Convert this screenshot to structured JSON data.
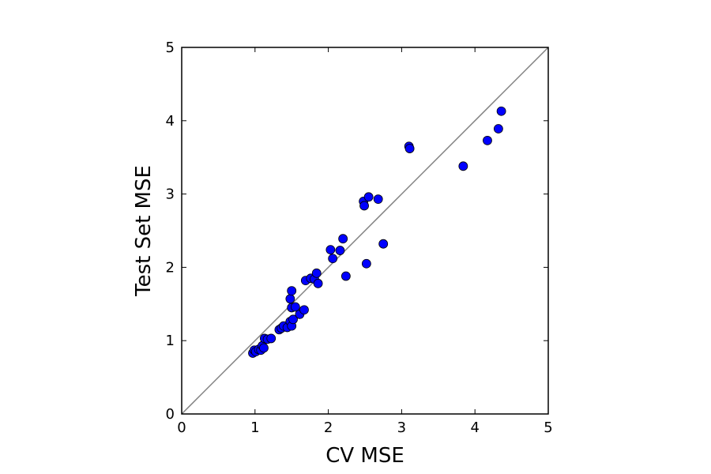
{
  "chart_data": {
    "type": "scatter",
    "title": "",
    "xlabel": "CV MSE",
    "ylabel": "Test Set MSE",
    "xlim": [
      0,
      5
    ],
    "ylim": [
      0,
      5
    ],
    "xticks": [
      "0",
      "1",
      "2",
      "3",
      "4",
      "5"
    ],
    "yticks": [
      "0",
      "1",
      "2",
      "3",
      "4",
      "5"
    ],
    "grid": false,
    "reference_line": {
      "from": [
        0,
        0
      ],
      "to": [
        5,
        5
      ],
      "color": "#808080"
    },
    "marker_color": "#0000ff",
    "marker_edge_color": "#000000",
    "points": [
      {
        "x": 0.97,
        "y": 0.83
      },
      {
        "x": 0.99,
        "y": 0.87
      },
      {
        "x": 1.01,
        "y": 0.85
      },
      {
        "x": 1.05,
        "y": 0.88
      },
      {
        "x": 1.08,
        "y": 0.87
      },
      {
        "x": 1.1,
        "y": 0.93
      },
      {
        "x": 1.12,
        "y": 0.9
      },
      {
        "x": 1.13,
        "y": 1.03
      },
      {
        "x": 1.17,
        "y": 1.02
      },
      {
        "x": 1.22,
        "y": 1.03
      },
      {
        "x": 1.33,
        "y": 1.15
      },
      {
        "x": 1.36,
        "y": 1.17
      },
      {
        "x": 1.39,
        "y": 1.2
      },
      {
        "x": 1.44,
        "y": 1.18
      },
      {
        "x": 1.48,
        "y": 1.26
      },
      {
        "x": 1.5,
        "y": 1.2
      },
      {
        "x": 1.52,
        "y": 1.29
      },
      {
        "x": 1.48,
        "y": 1.57
      },
      {
        "x": 1.5,
        "y": 1.68
      },
      {
        "x": 1.5,
        "y": 1.45
      },
      {
        "x": 1.55,
        "y": 1.46
      },
      {
        "x": 1.61,
        "y": 1.36
      },
      {
        "x": 1.67,
        "y": 1.42
      },
      {
        "x": 1.69,
        "y": 1.82
      },
      {
        "x": 1.76,
        "y": 1.85
      },
      {
        "x": 1.81,
        "y": 1.84
      },
      {
        "x": 1.84,
        "y": 1.92
      },
      {
        "x": 1.86,
        "y": 1.78
      },
      {
        "x": 2.03,
        "y": 2.24
      },
      {
        "x": 2.06,
        "y": 2.12
      },
      {
        "x": 2.16,
        "y": 2.23
      },
      {
        "x": 2.2,
        "y": 2.39
      },
      {
        "x": 2.24,
        "y": 1.88
      },
      {
        "x": 2.48,
        "y": 2.9
      },
      {
        "x": 2.49,
        "y": 2.84
      },
      {
        "x": 2.52,
        "y": 2.05
      },
      {
        "x": 2.55,
        "y": 2.96
      },
      {
        "x": 2.68,
        "y": 2.93
      },
      {
        "x": 2.75,
        "y": 2.32
      },
      {
        "x": 3.1,
        "y": 3.65
      },
      {
        "x": 3.11,
        "y": 3.62
      },
      {
        "x": 3.84,
        "y": 3.38
      },
      {
        "x": 4.17,
        "y": 3.73
      },
      {
        "x": 4.32,
        "y": 3.89
      },
      {
        "x": 4.36,
        "y": 4.13
      }
    ]
  }
}
